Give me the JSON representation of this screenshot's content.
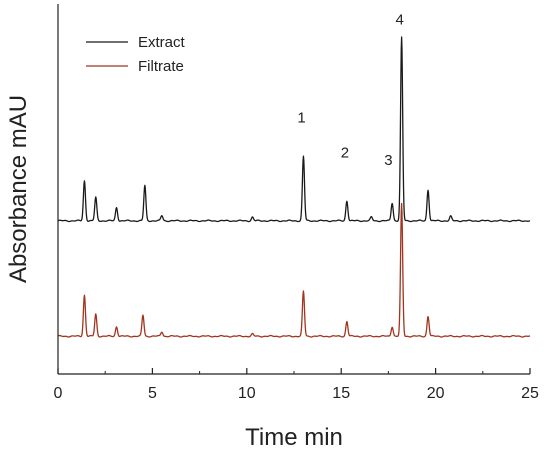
{
  "chart_data": {
    "type": "line",
    "title": "",
    "xlabel": "Time min",
    "ylabel": "Absorbance mAU",
    "xlim": [
      0,
      25
    ],
    "ylim": [
      0,
      1
    ],
    "x_ticks": [
      0,
      5,
      10,
      15,
      20,
      25
    ],
    "grid": false,
    "legend_position": "top-left",
    "series": [
      {
        "name": "Extract",
        "color": "#1a1a1a",
        "baseline": 0.414,
        "peaks": [
          {
            "x": 1.4,
            "height": 0.108
          },
          {
            "x": 2.0,
            "height": 0.063
          },
          {
            "x": 3.1,
            "height": 0.036
          },
          {
            "x": 4.6,
            "height": 0.095
          },
          {
            "x": 5.5,
            "height": 0.014
          },
          {
            "x": 10.3,
            "height": 0.01
          },
          {
            "x": 13.0,
            "height": 0.174
          },
          {
            "x": 15.3,
            "height": 0.054
          },
          {
            "x": 16.6,
            "height": 0.01
          },
          {
            "x": 17.7,
            "height": 0.048
          },
          {
            "x": 18.2,
            "height": 0.495
          },
          {
            "x": 19.6,
            "height": 0.084
          },
          {
            "x": 20.8,
            "height": 0.012
          }
        ]
      },
      {
        "name": "Filtrate",
        "color": "#a0341e",
        "baseline": 0.102,
        "peaks": [
          {
            "x": 1.4,
            "height": 0.111
          },
          {
            "x": 2.0,
            "height": 0.06
          },
          {
            "x": 3.1,
            "height": 0.026
          },
          {
            "x": 4.5,
            "height": 0.057
          },
          {
            "x": 5.5,
            "height": 0.012
          },
          {
            "x": 10.3,
            "height": 0.006
          },
          {
            "x": 13.0,
            "height": 0.121
          },
          {
            "x": 15.3,
            "height": 0.04
          },
          {
            "x": 17.7,
            "height": 0.026
          },
          {
            "x": 18.2,
            "height": 0.357
          },
          {
            "x": 19.6,
            "height": 0.054
          }
        ]
      }
    ],
    "annotations": [
      {
        "text": "1",
        "x": 12.9,
        "y": 0.68
      },
      {
        "text": "2",
        "x": 15.2,
        "y": 0.585
      },
      {
        "text": "3",
        "x": 17.5,
        "y": 0.565
      },
      {
        "text": "4",
        "x": 18.1,
        "y": 0.945
      }
    ]
  }
}
